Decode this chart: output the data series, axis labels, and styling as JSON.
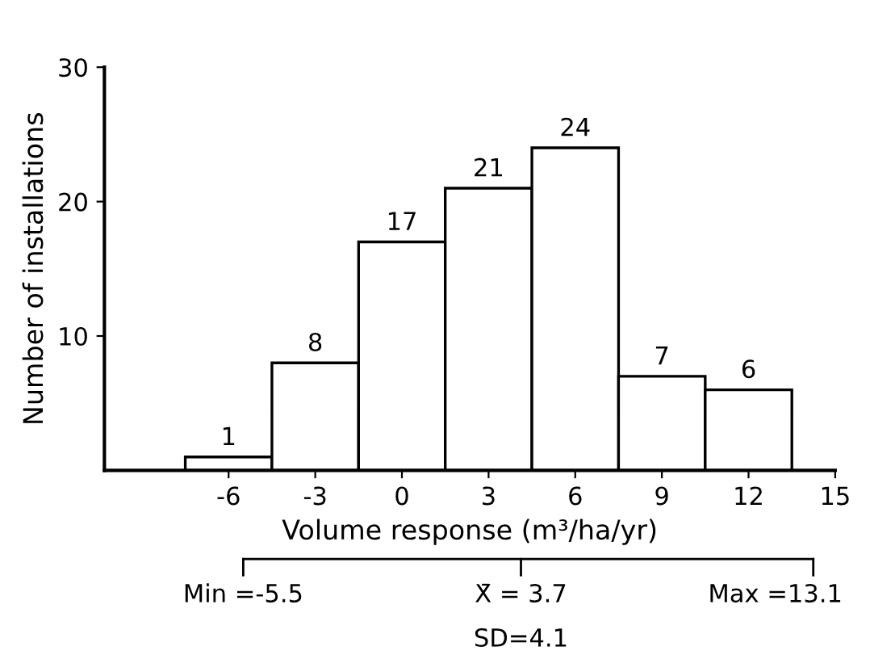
{
  "chart_data": {
    "type": "histogram",
    "xlabel": "Volume response (m³/ha/yr)",
    "ylabel": "Number of installations",
    "bins": [
      -7.5,
      -4.5,
      -1.5,
      1.5,
      4.5,
      7.5,
      10.5,
      13.5
    ],
    "values": [
      1,
      8,
      17,
      21,
      24,
      7,
      6
    ],
    "color": "#ffffff",
    "xlim": [
      -10.3,
      15
    ],
    "xticks": [
      -6,
      -3,
      0,
      3,
      6,
      9,
      12,
      15
    ],
    "ylim": [
      0,
      30
    ],
    "yticks": [
      10,
      20,
      30
    ],
    "data_labels": true,
    "grid": false,
    "annotations": [
      "Min =-5.5",
      "X̄ = 3.7",
      "Max =13.1",
      "SD=4.1"
    ]
  }
}
